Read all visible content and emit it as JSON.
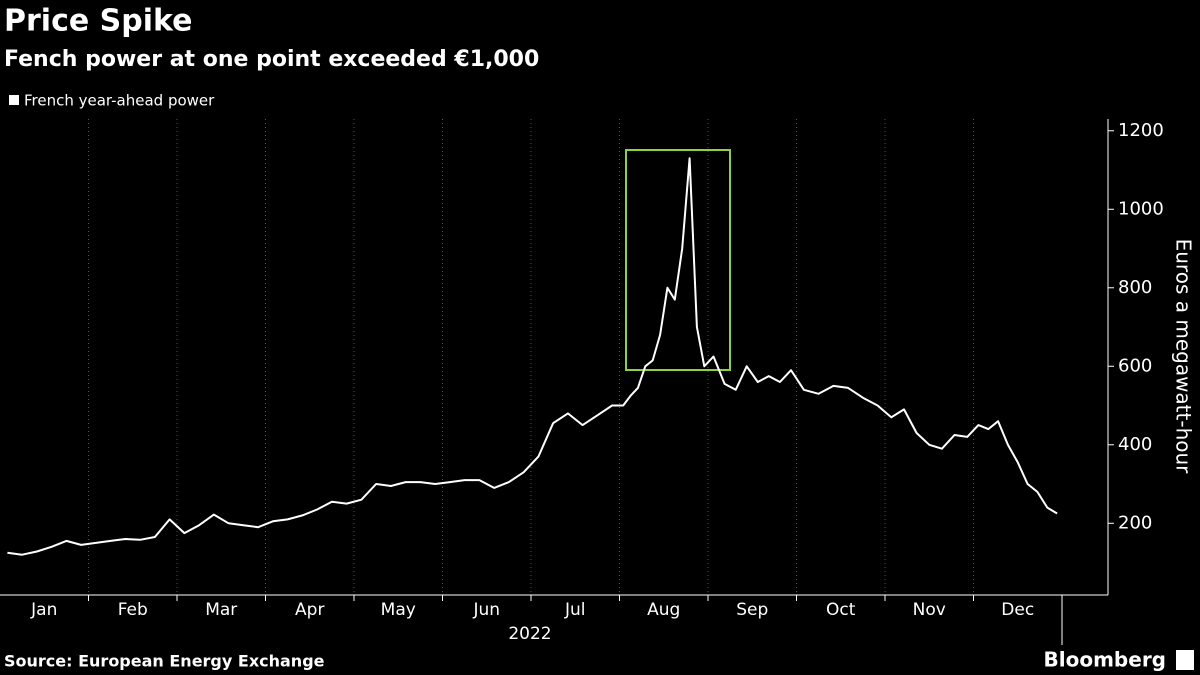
{
  "chart_data": {
    "type": "line",
    "title": "Price Spike",
    "subtitle": "Fench power at one point exceeded €1,000",
    "source": "Source: European Energy Exchange",
    "brand": "Bloomberg",
    "categories": [
      "Jan",
      "Feb",
      "Mar",
      "Apr",
      "May",
      "Jun",
      "Jul",
      "Aug",
      "Sep",
      "Oct",
      "Nov",
      "Dec"
    ],
    "year_label": "2022",
    "y_label": "Euros a megawatt-hour",
    "series": [
      {
        "name": "French year-ahead power",
        "color": "#ffffff",
        "values": [
          [
            125,
            120,
            128,
            140,
            155,
            145
          ],
          [
            150,
            155,
            160,
            158,
            165,
            210
          ],
          [
            175,
            195,
            222,
            200,
            195,
            190
          ],
          [
            205,
            210,
            220,
            235,
            255,
            250
          ],
          [
            260,
            300,
            295,
            305,
            305,
            300
          ],
          [
            305,
            310,
            310,
            290,
            305,
            330
          ],
          [
            370,
            455,
            480,
            450,
            475,
            500
          ],
          [
            500,
            525,
            545,
            600,
            615,
            680,
            800,
            770,
            900,
            1130,
            700,
            600
          ],
          [
            625,
            555,
            540,
            600,
            560,
            575,
            560,
            590
          ],
          [
            540,
            530,
            550,
            545,
            520,
            500
          ],
          [
            470,
            490,
            430,
            400,
            390,
            425,
            420
          ],
          [
            450,
            440,
            460,
            400,
            355,
            300,
            280,
            240,
            225
          ]
        ]
      }
    ],
    "ylim": [
      30,
      1230
    ],
    "yticks": [
      200,
      400,
      600,
      800,
      1000,
      1200
    ],
    "grid": true
  }
}
